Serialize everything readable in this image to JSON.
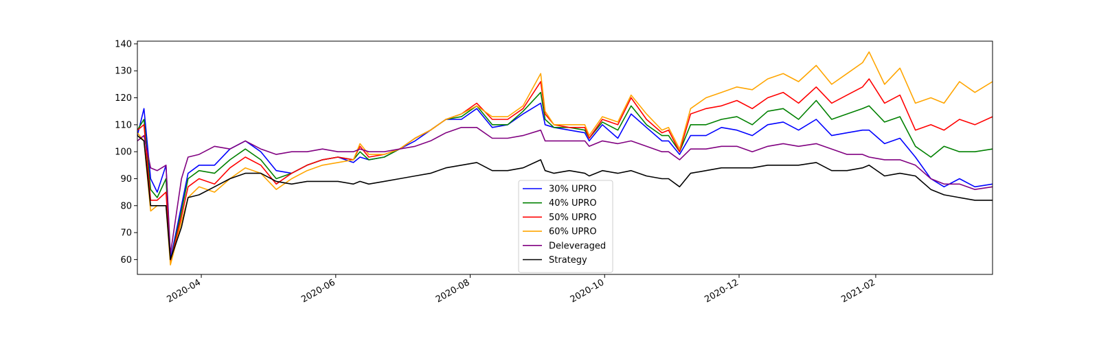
{
  "chart_data": {
    "type": "line",
    "xlabel": "",
    "ylabel": "",
    "xlim": [
      "2020-03-03",
      "2021-03-26"
    ],
    "ylim": [
      54.5,
      141
    ],
    "x_ticks": [
      "2020-04",
      "2020-06",
      "2020-08",
      "2020-10",
      "2020-12",
      "2021-02"
    ],
    "y_ticks": [
      60,
      70,
      80,
      90,
      100,
      110,
      120,
      130,
      140
    ],
    "grid": false,
    "legend_position": "bottom-center",
    "x": [
      "2020-03-03",
      "2020-03-06",
      "2020-03-09",
      "2020-03-12",
      "2020-03-16",
      "2020-03-18",
      "2020-03-23",
      "2020-03-26",
      "2020-03-31",
      "2020-04-07",
      "2020-04-14",
      "2020-04-21",
      "2020-04-28",
      "2020-05-05",
      "2020-05-12",
      "2020-05-19",
      "2020-05-26",
      "2020-06-02",
      "2020-06-09",
      "2020-06-12",
      "2020-06-16",
      "2020-06-23",
      "2020-06-30",
      "2020-07-07",
      "2020-07-14",
      "2020-07-21",
      "2020-07-28",
      "2020-08-04",
      "2020-08-11",
      "2020-08-18",
      "2020-08-25",
      "2020-09-02",
      "2020-09-04",
      "2020-09-08",
      "2020-09-15",
      "2020-09-22",
      "2020-09-24",
      "2020-09-30",
      "2020-10-07",
      "2020-10-13",
      "2020-10-20",
      "2020-10-27",
      "2020-10-30",
      "2020-11-04",
      "2020-11-09",
      "2020-11-16",
      "2020-11-23",
      "2020-11-30",
      "2020-12-07",
      "2020-12-14",
      "2020-12-21",
      "2020-12-28",
      "2021-01-05",
      "2021-01-12",
      "2021-01-19",
      "2021-01-26",
      "2021-01-29",
      "2021-02-05",
      "2021-02-12",
      "2021-02-19",
      "2021-02-26",
      "2021-03-04",
      "2021-03-11",
      "2021-03-18",
      "2021-03-26"
    ],
    "series": [
      {
        "name": "30% UPRO",
        "color": "#0000ff",
        "values": [
          106,
          116,
          90,
          85,
          95,
          60,
          80,
          92,
          95,
          95,
          101,
          104,
          100,
          93,
          92,
          95,
          97,
          98,
          96,
          98,
          97,
          98,
          101,
          104,
          108,
          112,
          112,
          116,
          109,
          110,
          114,
          118,
          110,
          109,
          108,
          107,
          104,
          110,
          105,
          114,
          109,
          104,
          104,
          99,
          106,
          106,
          109,
          108,
          106,
          110,
          111,
          108,
          112,
          106,
          107,
          108,
          108,
          103,
          105,
          98,
          90,
          87,
          90,
          87,
          88
        ]
      },
      {
        "name": "40% UPRO",
        "color": "#008000",
        "values": [
          108,
          112,
          86,
          83,
          90,
          59,
          78,
          90,
          93,
          92,
          97,
          101,
          97,
          90,
          92,
          95,
          97,
          98,
          97,
          100,
          97,
          98,
          101,
          105,
          108,
          112,
          113,
          117,
          110,
          110,
          115,
          122,
          112,
          109,
          109,
          108,
          105,
          111,
          108,
          117,
          110,
          106,
          106,
          100,
          110,
          110,
          112,
          113,
          110,
          115,
          116,
          112,
          119,
          112,
          114,
          116,
          117,
          111,
          113,
          102,
          98,
          102,
          100,
          100,
          101
        ]
      },
      {
        "name": "50% UPRO",
        "color": "#ff0000",
        "values": [
          108,
          110,
          82,
          82,
          85,
          59,
          76,
          87,
          90,
          88,
          94,
          98,
          95,
          88,
          92,
          95,
          97,
          98,
          97,
          102,
          98,
          99,
          101,
          105,
          108,
          112,
          114,
          118,
          112,
          112,
          116,
          126,
          114,
          110,
          109,
          109,
          105,
          112,
          110,
          120,
          112,
          107,
          108,
          100,
          114,
          116,
          117,
          119,
          116,
          120,
          122,
          118,
          124,
          118,
          121,
          124,
          127,
          118,
          121,
          108,
          110,
          108,
          112,
          110,
          113
        ]
      },
      {
        "name": "60% UPRO",
        "color": "#ffa500",
        "values": [
          107,
          104,
          78,
          80,
          80,
          58,
          74,
          83,
          87,
          85,
          90,
          94,
          92,
          86,
          90,
          93,
          95,
          96,
          97,
          103,
          99,
          99,
          101,
          105,
          108,
          112,
          114,
          117,
          113,
          113,
          117,
          129,
          115,
          110,
          110,
          110,
          106,
          113,
          111,
          121,
          114,
          108,
          109,
          101,
          116,
          120,
          122,
          124,
          123,
          127,
          129,
          126,
          132,
          125,
          129,
          133,
          137,
          125,
          131,
          118,
          120,
          118,
          126,
          122,
          126
        ]
      },
      {
        "name": "Deleveraged",
        "color": "#800080",
        "values": [
          104,
          106,
          94,
          93,
          95,
          62,
          90,
          98,
          99,
          102,
          101,
          104,
          101,
          99,
          100,
          100,
          101,
          100,
          100,
          101,
          100,
          100,
          101,
          102,
          104,
          107,
          109,
          109,
          105,
          105,
          106,
          108,
          104,
          104,
          104,
          104,
          102,
          104,
          103,
          104,
          102,
          100,
          100,
          97,
          101,
          101,
          102,
          102,
          100,
          102,
          103,
          102,
          103,
          101,
          99,
          99,
          98,
          97,
          97,
          95,
          90,
          88,
          88,
          86,
          87
        ]
      },
      {
        "name": "Strategy",
        "color": "#000000",
        "values": [
          106,
          104,
          80,
          80,
          80,
          60,
          72,
          83,
          84,
          87,
          90,
          92,
          92,
          89,
          88,
          89,
          89,
          89,
          88,
          89,
          88,
          89,
          90,
          91,
          92,
          94,
          95,
          96,
          93,
          93,
          94,
          97,
          93,
          92,
          93,
          92,
          91,
          93,
          92,
          93,
          91,
          90,
          90,
          87,
          92,
          93,
          94,
          94,
          94,
          95,
          95,
          95,
          96,
          93,
          93,
          94,
          95,
          91,
          92,
          91,
          86,
          84,
          83,
          82,
          82
        ]
      }
    ]
  }
}
